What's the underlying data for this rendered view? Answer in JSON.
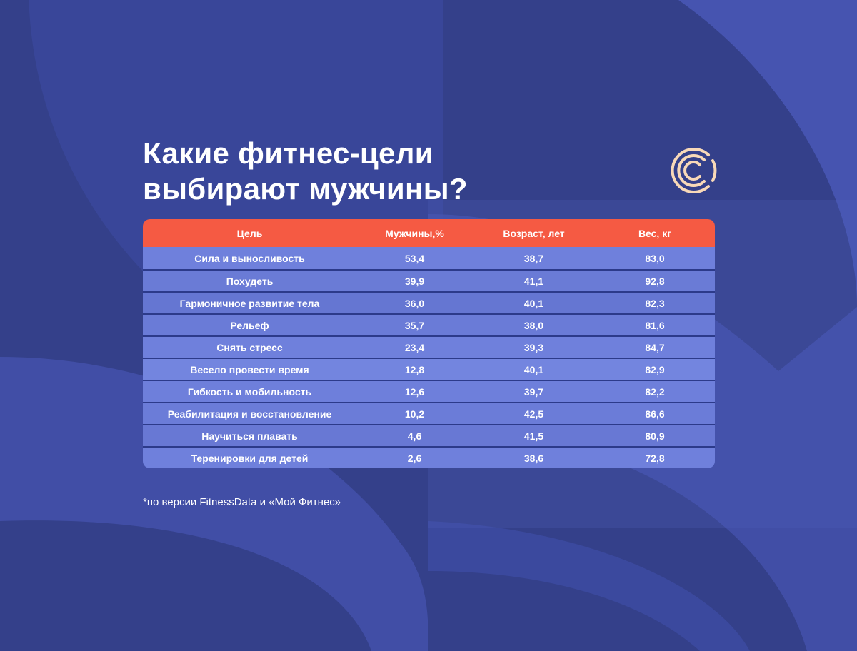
{
  "title": {
    "line1": "Какие фитнес-цели",
    "line2": "выбирают мужчины?"
  },
  "logo": {
    "icon": "concentric-c-logo-icon",
    "color": "#f8d9b8"
  },
  "colors": {
    "background": "#34408a",
    "header": "#f55a43",
    "accent_shape": "#4a58b4"
  },
  "table": {
    "headers": [
      "Цель",
      "Мужчины,%",
      "Возраст, лет",
      "Вес, кг"
    ],
    "rows": [
      [
        "Сила и выносливость",
        "53,4",
        "38,7",
        "83,0"
      ],
      [
        "Похудеть",
        "39,9",
        "41,1",
        "92,8"
      ],
      [
        "Гармоничное развитие тела",
        "36,0",
        "40,1",
        "82,3"
      ],
      [
        "Рельеф",
        "35,7",
        "38,0",
        "81,6"
      ],
      [
        "Снять стресс",
        "23,4",
        "39,3",
        "84,7"
      ],
      [
        "Весело провести время",
        "12,8",
        "40,1",
        "82,9"
      ],
      [
        "Гибкость и мобильность",
        "12,6",
        "39,7",
        "82,2"
      ],
      [
        "Реабилитация и восстановление",
        "10,2",
        "42,5",
        "86,6"
      ],
      [
        "Научиться плавать",
        "4,6",
        "41,5",
        "80,9"
      ],
      [
        "Теренировки для детей",
        "2,6",
        "38,6",
        "72,8"
      ]
    ]
  },
  "footnote": "*по версии FitnessData и «Мой Фитнес»"
}
